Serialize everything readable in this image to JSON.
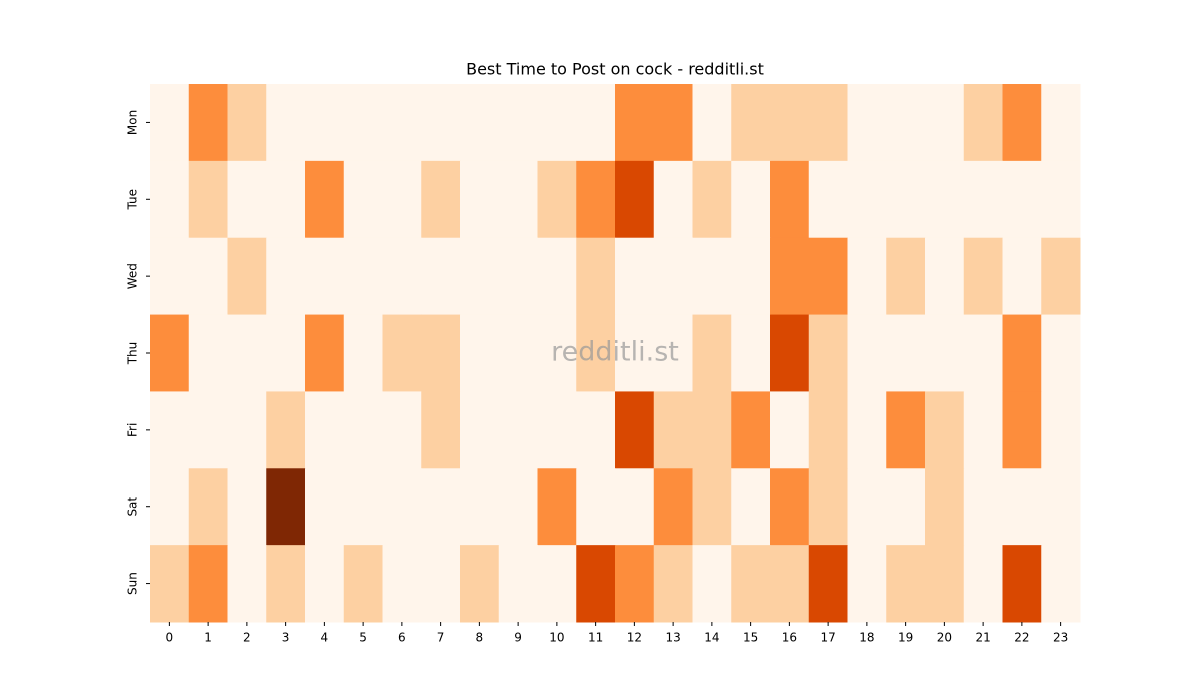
{
  "chart_data": {
    "type": "heatmap",
    "title": "Best Time to Post on cock - redditli.st",
    "watermark": "redditli.st",
    "x": [
      "0",
      "1",
      "2",
      "3",
      "4",
      "5",
      "6",
      "7",
      "8",
      "9",
      "10",
      "11",
      "12",
      "13",
      "14",
      "15",
      "16",
      "17",
      "18",
      "19",
      "20",
      "21",
      "22",
      "23"
    ],
    "y": [
      "Mon",
      "Tue",
      "Wed",
      "Thu",
      "Fri",
      "Sat",
      "Sun"
    ],
    "values": [
      [
        0,
        2,
        1,
        0,
        0,
        0,
        0,
        0,
        0,
        0,
        0,
        0,
        2,
        2,
        0,
        1,
        1,
        1,
        0,
        0,
        0,
        1,
        2,
        0
      ],
      [
        0,
        1,
        0,
        0,
        2,
        0,
        0,
        1,
        0,
        0,
        1,
        2,
        3,
        0,
        1,
        0,
        2,
        0,
        0,
        0,
        0,
        0,
        0,
        0
      ],
      [
        0,
        0,
        1,
        0,
        0,
        0,
        0,
        0,
        0,
        0,
        0,
        1,
        0,
        0,
        0,
        0,
        2,
        2,
        0,
        1,
        0,
        1,
        0,
        1
      ],
      [
        2,
        0,
        0,
        0,
        2,
        0,
        1,
        1,
        0,
        0,
        0,
        1,
        0,
        0,
        1,
        0,
        3,
        1,
        0,
        0,
        0,
        0,
        2,
        0
      ],
      [
        0,
        0,
        0,
        1,
        0,
        0,
        0,
        1,
        0,
        0,
        0,
        0,
        3,
        1,
        1,
        2,
        0,
        1,
        0,
        2,
        1,
        0,
        2,
        0
      ],
      [
        0,
        1,
        0,
        4,
        0,
        0,
        0,
        0,
        0,
        0,
        2,
        0,
        0,
        2,
        1,
        0,
        2,
        1,
        0,
        0,
        1,
        0,
        0,
        0
      ],
      [
        1,
        2,
        0,
        1,
        0,
        1,
        0,
        0,
        1,
        0,
        0,
        3,
        2,
        1,
        0,
        1,
        1,
        3,
        0,
        1,
        1,
        0,
        3,
        0
      ]
    ],
    "vmin": 0,
    "vmax": 4,
    "colors": [
      "#fff5eb",
      "#fdd0a2",
      "#fd8d3c",
      "#d94801",
      "#7f2704"
    ]
  }
}
